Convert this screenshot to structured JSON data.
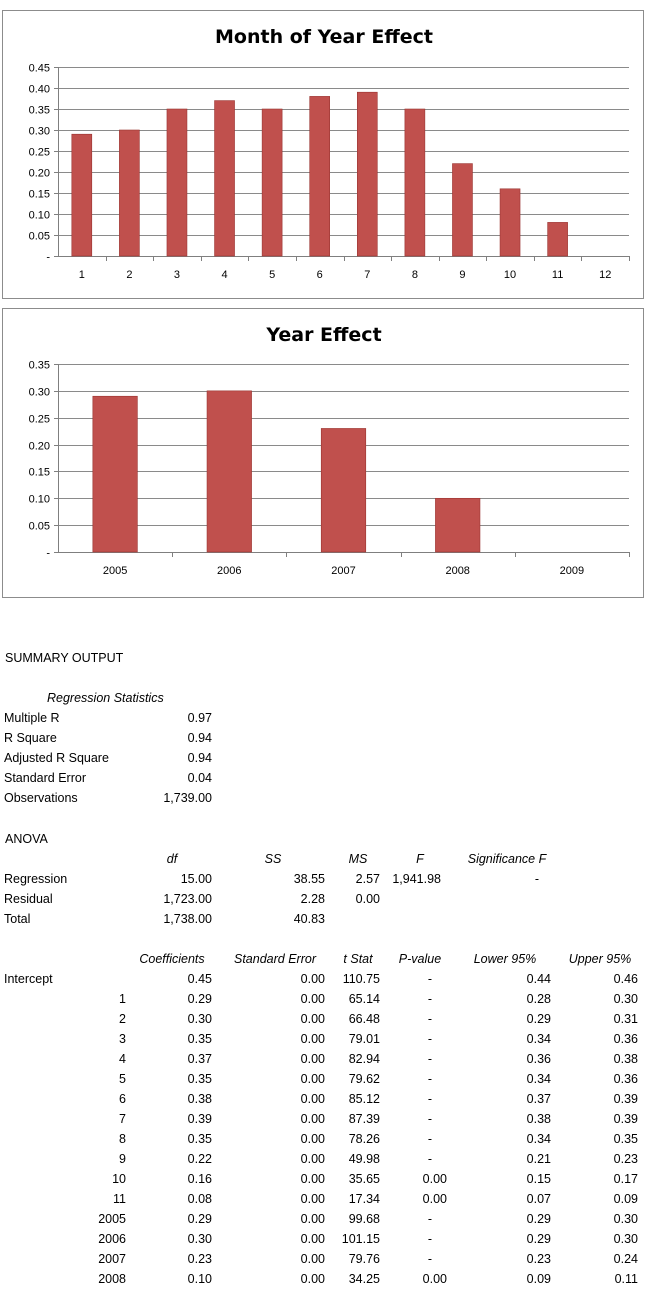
{
  "chart_data": [
    {
      "type": "bar",
      "title": "Month of Year Effect",
      "categories": [
        "1",
        "2",
        "3",
        "4",
        "5",
        "6",
        "7",
        "8",
        "9",
        "10",
        "11",
        "12"
      ],
      "values": [
        0.29,
        0.3,
        0.35,
        0.37,
        0.35,
        0.38,
        0.39,
        0.35,
        0.22,
        0.16,
        0.08,
        null
      ],
      "ylim": [
        0,
        0.45
      ],
      "yticks": [
        "-",
        "0.05",
        "0.10",
        "0.15",
        "0.20",
        "0.25",
        "0.30",
        "0.35",
        "0.40",
        "0.45"
      ],
      "grid": true,
      "colors": {
        "bar": "#c0504d"
      }
    },
    {
      "type": "bar",
      "title": "Year Effect",
      "categories": [
        "2005",
        "2006",
        "2007",
        "2008",
        "2009"
      ],
      "values": [
        0.29,
        0.3,
        0.23,
        0.1,
        null
      ],
      "ylim": [
        0,
        0.35
      ],
      "yticks": [
        "-",
        "0.05",
        "0.10",
        "0.15",
        "0.20",
        "0.25",
        "0.30",
        "0.35"
      ],
      "grid": true,
      "colors": {
        "bar": "#c0504d"
      }
    }
  ],
  "summary": {
    "heading": "SUMMARY OUTPUT",
    "reg_stats_title": "Regression Statistics",
    "reg_stats": [
      {
        "label": "Multiple R",
        "value": "0.97"
      },
      {
        "label": "R Square",
        "value": "0.94"
      },
      {
        "label": "Adjusted R Square",
        "value": "0.94"
      },
      {
        "label": "Standard Error",
        "value": "0.04"
      },
      {
        "label": "Observations",
        "value": "1,739.00"
      }
    ],
    "anova_title": "ANOVA",
    "anova_headers": [
      "df",
      "SS",
      "MS",
      "F",
      "Significance F"
    ],
    "anova_rows": [
      {
        "label": "Regression",
        "df": "15.00",
        "ss": "38.55",
        "ms": "2.57",
        "f": "1,941.98",
        "sig": "-"
      },
      {
        "label": "Residual",
        "df": "1,723.00",
        "ss": "2.28",
        "ms": "0.00",
        "f": "",
        "sig": ""
      },
      {
        "label": "Total",
        "df": "1,738.00",
        "ss": "40.83",
        "ms": "",
        "f": "",
        "sig": ""
      }
    ],
    "coef_headers": [
      "Coefficients",
      "Standard Error",
      "t Stat",
      "P-value",
      "Lower 95%",
      "Upper 95%"
    ],
    "coef_rows": [
      {
        "label": "Intercept",
        "coef": "0.45",
        "se": "0.00",
        "t": "110.75",
        "p": "-",
        "lo": "0.44",
        "hi": "0.46"
      },
      {
        "label": "1",
        "coef": "0.29",
        "se": "0.00",
        "t": "65.14",
        "p": "-",
        "lo": "0.28",
        "hi": "0.30"
      },
      {
        "label": "2",
        "coef": "0.30",
        "se": "0.00",
        "t": "66.48",
        "p": "-",
        "lo": "0.29",
        "hi": "0.31"
      },
      {
        "label": "3",
        "coef": "0.35",
        "se": "0.00",
        "t": "79.01",
        "p": "-",
        "lo": "0.34",
        "hi": "0.36"
      },
      {
        "label": "4",
        "coef": "0.37",
        "se": "0.00",
        "t": "82.94",
        "p": "-",
        "lo": "0.36",
        "hi": "0.38"
      },
      {
        "label": "5",
        "coef": "0.35",
        "se": "0.00",
        "t": "79.62",
        "p": "-",
        "lo": "0.34",
        "hi": "0.36"
      },
      {
        "label": "6",
        "coef": "0.38",
        "se": "0.00",
        "t": "85.12",
        "p": "-",
        "lo": "0.37",
        "hi": "0.39"
      },
      {
        "label": "7",
        "coef": "0.39",
        "se": "0.00",
        "t": "87.39",
        "p": "-",
        "lo": "0.38",
        "hi": "0.39"
      },
      {
        "label": "8",
        "coef": "0.35",
        "se": "0.00",
        "t": "78.26",
        "p": "-",
        "lo": "0.34",
        "hi": "0.35"
      },
      {
        "label": "9",
        "coef": "0.22",
        "se": "0.00",
        "t": "49.98",
        "p": "-",
        "lo": "0.21",
        "hi": "0.23"
      },
      {
        "label": "10",
        "coef": "0.16",
        "se": "0.00",
        "t": "35.65",
        "p": "0.00",
        "lo": "0.15",
        "hi": "0.17"
      },
      {
        "label": "11",
        "coef": "0.08",
        "se": "0.00",
        "t": "17.34",
        "p": "0.00",
        "lo": "0.07",
        "hi": "0.09"
      },
      {
        "label": "2005",
        "coef": "0.29",
        "se": "0.00",
        "t": "99.68",
        "p": "-",
        "lo": "0.29",
        "hi": "0.30"
      },
      {
        "label": "2006",
        "coef": "0.30",
        "se": "0.00",
        "t": "101.15",
        "p": "-",
        "lo": "0.29",
        "hi": "0.30"
      },
      {
        "label": "2007",
        "coef": "0.23",
        "se": "0.00",
        "t": "79.76",
        "p": "-",
        "lo": "0.23",
        "hi": "0.24"
      },
      {
        "label": "2008",
        "coef": "0.10",
        "se": "0.00",
        "t": "34.25",
        "p": "0.00",
        "lo": "0.09",
        "hi": "0.11"
      }
    ]
  }
}
